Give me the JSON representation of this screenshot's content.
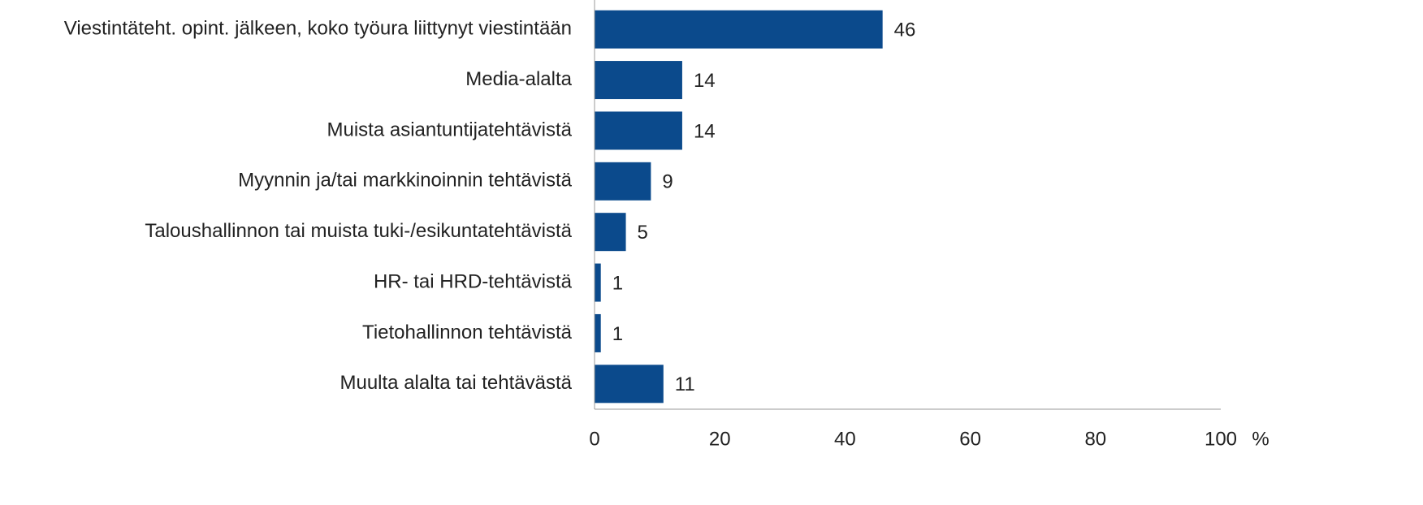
{
  "chart_data": {
    "type": "bar",
    "orientation": "horizontal",
    "categories": [
      "Viestintäteht. opint. jälkeen, koko työura liittynyt viestintään",
      "Media-alalta",
      "Muista asiantuntijatehtävistä",
      "Myynnin ja/tai markkinoinnin tehtävistä",
      "Taloushallinnon tai muista tuki-/esikuntatehtävistä",
      "HR- tai HRD-tehtävistä",
      "Tietohallinnon tehtävistä",
      "Muulta alalta tai tehtävästä"
    ],
    "values": [
      46,
      14,
      14,
      9,
      5,
      1,
      1,
      11
    ],
    "color": "#0b4a8c",
    "xlabel": "%",
    "xlim": [
      0,
      100
    ],
    "xticks": [
      0,
      20,
      40,
      60,
      80,
      100
    ],
    "grid": false
  }
}
